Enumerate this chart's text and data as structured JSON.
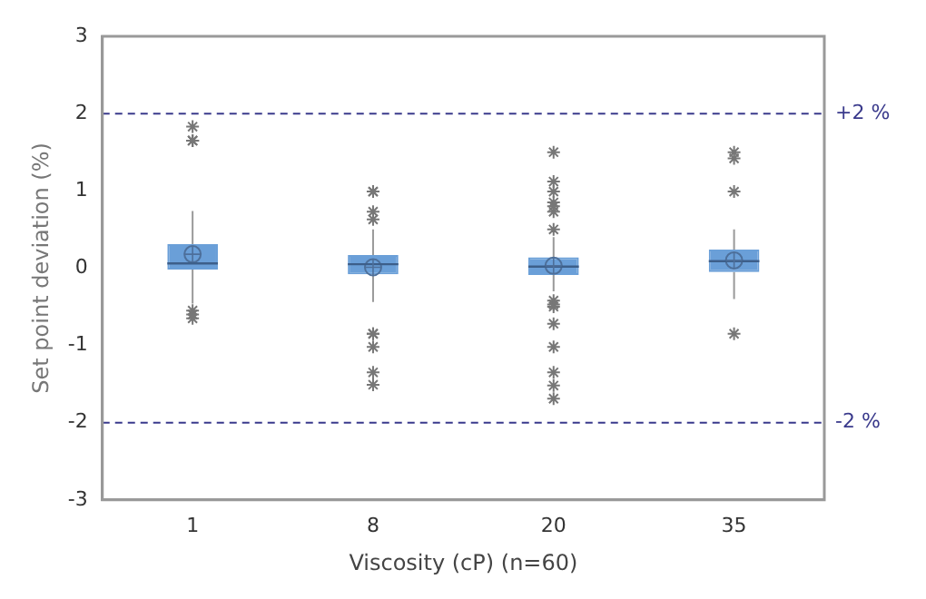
{
  "chart_data": {
    "type": "box",
    "xlabel": "Viscosity (cP) (n=60)",
    "ylabel": "Set point deviation (%)",
    "categories": [
      "1",
      "8",
      "20",
      "35"
    ],
    "color": "#6a9fd8",
    "marker": "star",
    "grid": false,
    "boxes": [
      {
        "low": -0.46,
        "q1": -0.02,
        "median": 0.06,
        "q3": 0.31,
        "high": 0.74,
        "mean": 0.18,
        "outliers": [
          1.83,
          1.65,
          1.65,
          1.65,
          -0.55,
          -0.6,
          -0.65
        ]
      },
      {
        "low": -0.44,
        "q1": -0.08,
        "median": 0.05,
        "q3": 0.17,
        "high": 0.5,
        "mean": 0.01,
        "outliers": [
          0.99,
          0.99,
          0.73,
          0.63,
          -0.85,
          -0.85,
          -1.02,
          -1.35,
          -1.51
        ]
      },
      {
        "low": -0.3,
        "q1": -0.09,
        "median": 0.02,
        "q3": 0.14,
        "high": 0.4,
        "mean": 0.03,
        "outliers": [
          1.5,
          1.12,
          0.99,
          0.85,
          0.8,
          0.73,
          0.5,
          -0.42,
          -0.47,
          -0.5,
          -0.72,
          -1.02,
          -1.35,
          -1.52,
          -1.69
        ]
      },
      {
        "low": -0.4,
        "q1": -0.05,
        "median": 0.09,
        "q3": 0.24,
        "high": 0.5,
        "mean": 0.1,
        "outliers": [
          1.5,
          1.42,
          0.99,
          -0.85
        ]
      }
    ],
    "ylim": [
      -3,
      3
    ],
    "yticks": [
      -3,
      -2,
      -1,
      0,
      1,
      2,
      3
    ],
    "ref_lines": [
      {
        "axis": "y",
        "value": 2,
        "label": "+2 %",
        "color": "#3a3a8c",
        "line_style": "dashed"
      },
      {
        "axis": "y",
        "value": -2,
        "label": "-2 %",
        "color": "#3a3a8c",
        "line_style": "dashed"
      }
    ]
  }
}
